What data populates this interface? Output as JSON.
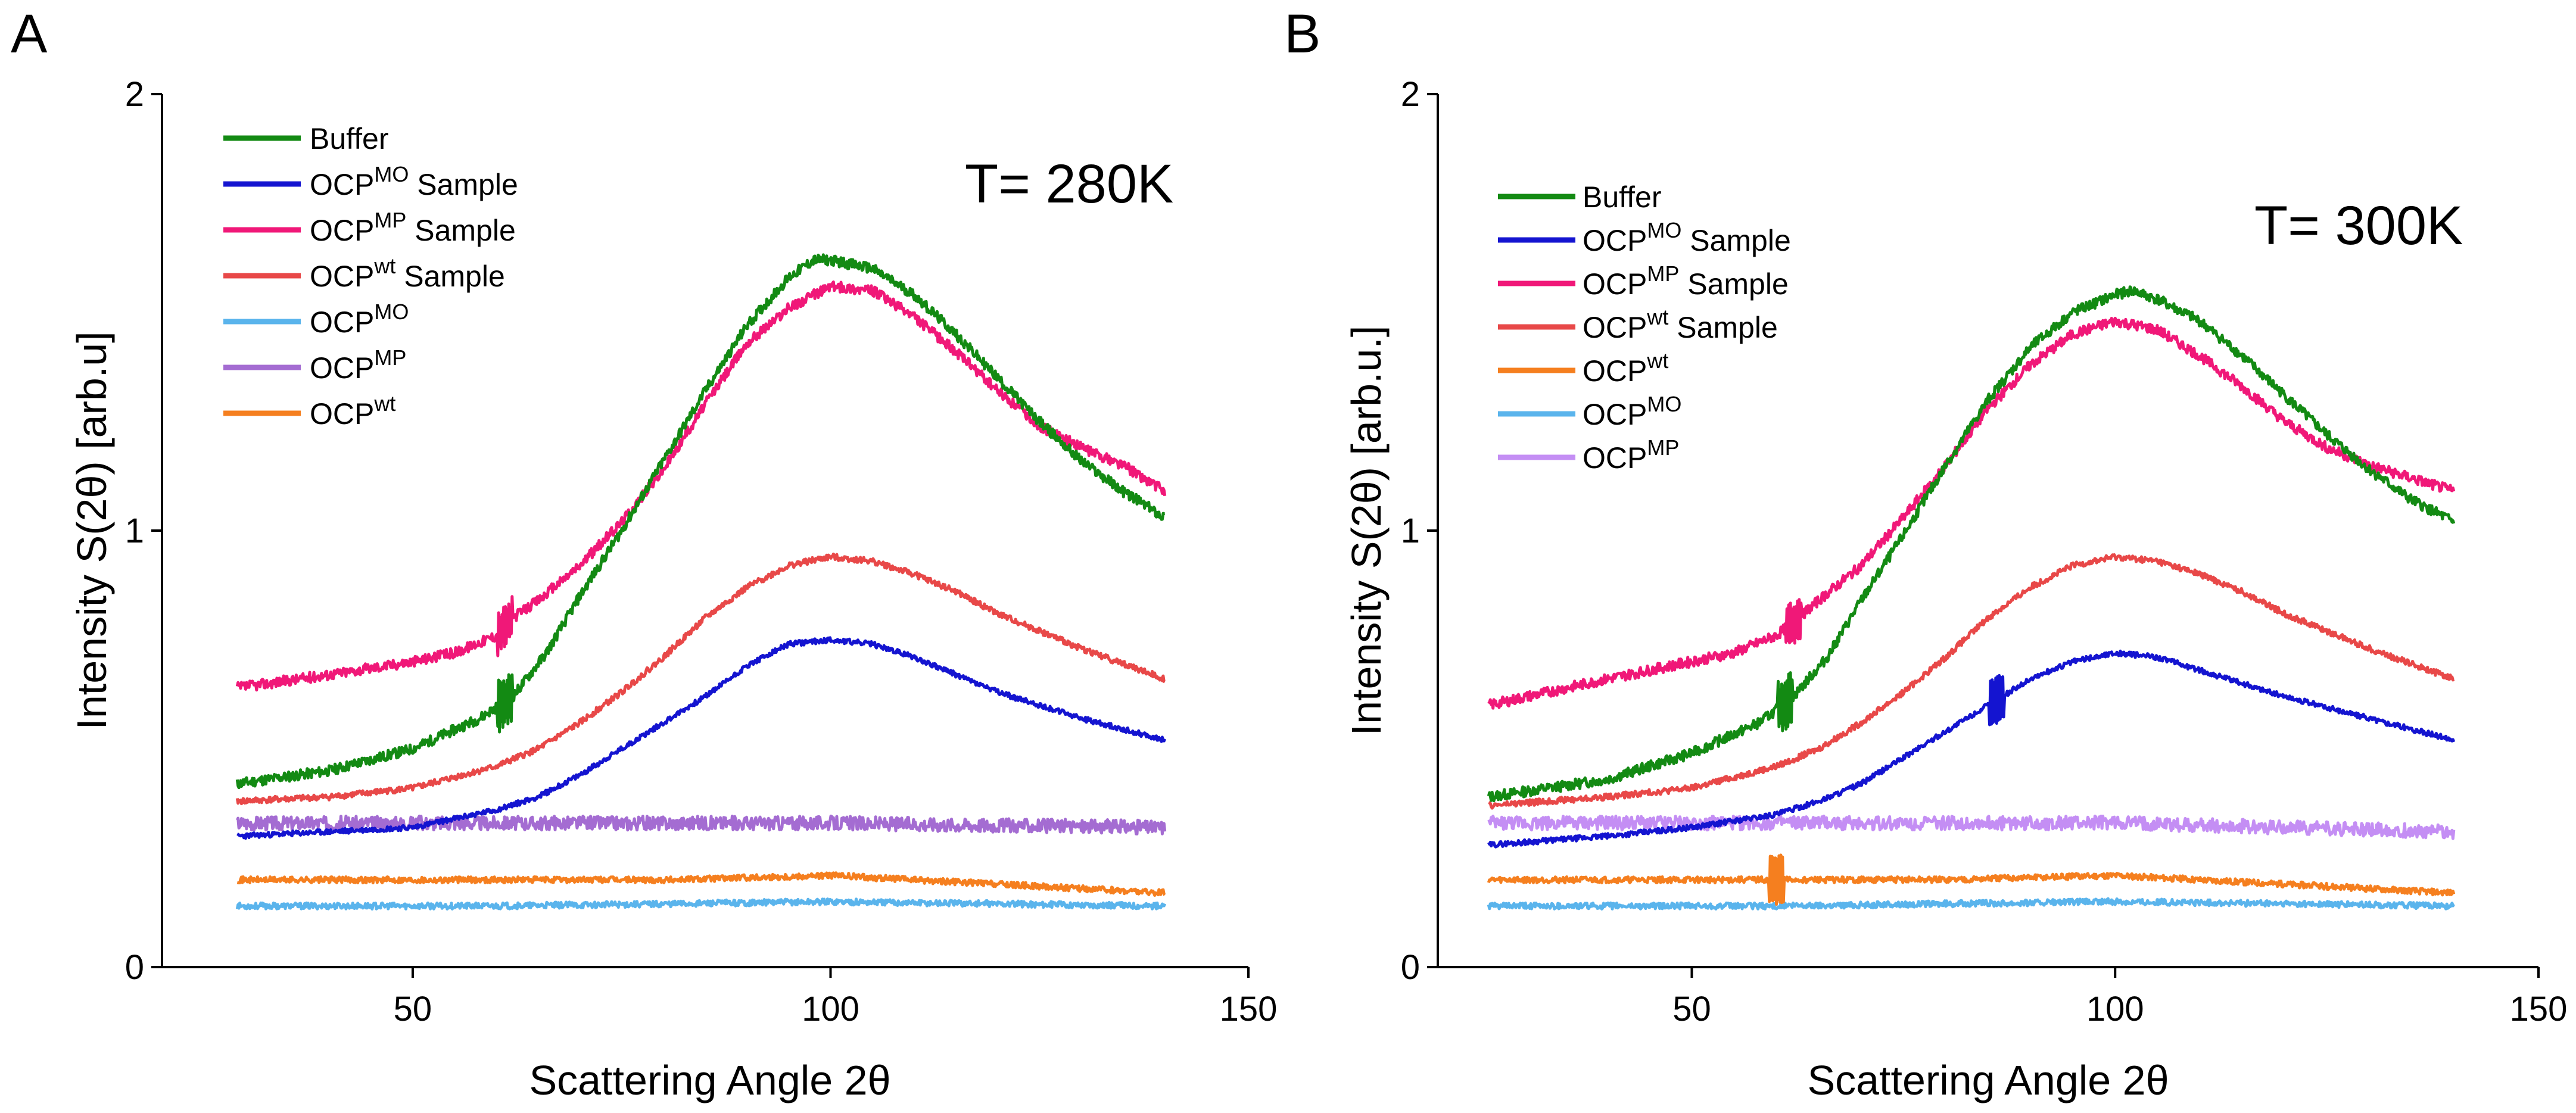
{
  "colors": {
    "buffer": "#138a13",
    "ocp_mo_sample": "#1414d0",
    "ocp_mp_sample": "#f01878",
    "ocp_wt_sample": "#e84848",
    "ocp_mo": "#5ab4ec",
    "ocp_mp_a": "#a46cd2",
    "ocp_mp_b": "#c48ef4",
    "ocp_wt": "#f57f1f",
    "axis": "#000000"
  },
  "chart_data": [
    {
      "panel": "A",
      "type": "line",
      "annotation": "T= 280K",
      "xlabel": "Scattering Angle 2θ",
      "ylabel": "Intensity S(2θ) [arb.u]",
      "xlim": [
        20,
        150
      ],
      "ylim": [
        0,
        2
      ],
      "xticks": [
        {
          "value": 50,
          "label": "50"
        },
        {
          "value": 100,
          "label": "100"
        },
        {
          "value": 150,
          "label": "150"
        }
      ],
      "yticks": [
        {
          "value": 0,
          "label": "0"
        },
        {
          "value": 1,
          "label": "1"
        },
        {
          "value": 2,
          "label": "2"
        }
      ],
      "legend": [
        {
          "base": "Buffer",
          "sup": "",
          "suffix": "",
          "color_key": "buffer"
        },
        {
          "base": "OCP",
          "sup": "MO",
          "suffix": "Sample",
          "color_key": "ocp_mo_sample"
        },
        {
          "base": "OCP",
          "sup": "MP",
          "suffix": "Sample",
          "color_key": "ocp_mp_sample"
        },
        {
          "base": "OCP",
          "sup": "wt",
          "suffix": "Sample",
          "color_key": "ocp_wt_sample"
        },
        {
          "base": "OCP",
          "sup": "MO",
          "suffix": "",
          "color_key": "ocp_mo"
        },
        {
          "base": "OCP",
          "sup": "MP",
          "suffix": "",
          "color_key": "ocp_mp_a"
        },
        {
          "base": "OCP",
          "sup": "wt",
          "suffix": "",
          "color_key": "ocp_wt"
        }
      ],
      "series": [
        {
          "name": "Buffer",
          "color_key": "buffer",
          "noise": 0.012,
          "seed": 11,
          "spike_at": 61,
          "spike_amp": 0.05,
          "x": [
            29,
            40,
            50,
            58,
            62,
            66,
            70,
            75,
            80,
            85,
            90,
            95,
            98,
            100,
            105,
            110,
            115,
            120,
            125,
            130,
            135,
            140
          ],
          "y": [
            0.42,
            0.45,
            0.5,
            0.57,
            0.62,
            0.72,
            0.85,
            1.0,
            1.16,
            1.32,
            1.47,
            1.58,
            1.62,
            1.62,
            1.6,
            1.54,
            1.45,
            1.35,
            1.25,
            1.16,
            1.09,
            1.03
          ]
        },
        {
          "name": "OCP MO Sample",
          "color_key": "ocp_mo_sample",
          "noise": 0.006,
          "seed": 23,
          "spike_at": 0,
          "spike_amp": 0,
          "x": [
            29,
            40,
            50,
            60,
            65,
            70,
            75,
            80,
            85,
            90,
            95,
            100,
            105,
            110,
            115,
            120,
            130,
            140
          ],
          "y": [
            0.3,
            0.31,
            0.32,
            0.36,
            0.39,
            0.44,
            0.5,
            0.56,
            0.62,
            0.69,
            0.74,
            0.75,
            0.74,
            0.71,
            0.67,
            0.63,
            0.57,
            0.52
          ]
        },
        {
          "name": "OCP MP Sample",
          "color_key": "ocp_mp_sample",
          "noise": 0.012,
          "seed": 37,
          "spike_at": 61,
          "spike_amp": 0.04,
          "x": [
            29,
            40,
            50,
            55,
            60,
            62,
            65,
            70,
            75,
            80,
            85,
            90,
            95,
            100,
            105,
            110,
            115,
            120,
            125,
            130,
            135,
            140
          ],
          "y": [
            0.64,
            0.67,
            0.7,
            0.72,
            0.76,
            0.8,
            0.84,
            0.92,
            1.02,
            1.14,
            1.29,
            1.43,
            1.51,
            1.56,
            1.55,
            1.49,
            1.41,
            1.32,
            1.24,
            1.19,
            1.15,
            1.09
          ]
        },
        {
          "name": "OCP wt Sample",
          "color_key": "ocp_wt_sample",
          "noise": 0.007,
          "seed": 41,
          "spike_at": 0,
          "spike_amp": 0,
          "x": [
            29,
            40,
            50,
            60,
            65,
            70,
            75,
            80,
            85,
            90,
            95,
            100,
            105,
            110,
            115,
            120,
            130,
            140
          ],
          "y": [
            0.38,
            0.39,
            0.41,
            0.46,
            0.5,
            0.56,
            0.63,
            0.71,
            0.8,
            0.87,
            0.92,
            0.94,
            0.93,
            0.9,
            0.86,
            0.81,
            0.73,
            0.66
          ]
        },
        {
          "name": "OCP MO",
          "color_key": "ocp_mo",
          "noise": 0.007,
          "seed": 53,
          "spike_at": 0,
          "spike_amp": 0,
          "x": [
            29,
            60,
            100,
            140
          ],
          "y": [
            0.14,
            0.14,
            0.15,
            0.14
          ]
        },
        {
          "name": "OCP MP",
          "color_key": "ocp_mp_a",
          "noise": 0.016,
          "seed": 67,
          "spike_at": 0,
          "spike_amp": 0,
          "x": [
            29,
            60,
            100,
            140
          ],
          "y": [
            0.33,
            0.33,
            0.33,
            0.32
          ]
        },
        {
          "name": "OCP wt",
          "color_key": "ocp_wt",
          "noise": 0.007,
          "seed": 71,
          "spike_at": 0,
          "spike_amp": 0,
          "x": [
            29,
            60,
            80,
            100,
            120,
            140
          ],
          "y": [
            0.2,
            0.2,
            0.2,
            0.21,
            0.19,
            0.17
          ]
        }
      ]
    },
    {
      "panel": "B",
      "type": "line",
      "annotation": "T= 300K",
      "xlabel": "Scattering Angle 2θ",
      "ylabel": "Intensity S(2θ) [arb.u.]",
      "xlim": [
        20,
        150
      ],
      "ylim": [
        0,
        2
      ],
      "xticks": [
        {
          "value": 50,
          "label": "50"
        },
        {
          "value": 100,
          "label": "100"
        },
        {
          "value": 150,
          "label": "150"
        }
      ],
      "yticks": [
        {
          "value": 0,
          "label": "0"
        },
        {
          "value": 1,
          "label": "1"
        },
        {
          "value": 2,
          "label": "2"
        }
      ],
      "legend": [
        {
          "base": "Buffer",
          "sup": "",
          "suffix": "",
          "color_key": "buffer"
        },
        {
          "base": "OCP",
          "sup": "MO",
          "suffix": "Sample",
          "color_key": "ocp_mo_sample"
        },
        {
          "base": "OCP",
          "sup": "MP",
          "suffix": "Sample",
          "color_key": "ocp_mp_sample"
        },
        {
          "base": "OCP",
          "sup": "wt",
          "suffix": "Sample",
          "color_key": "ocp_wt_sample"
        },
        {
          "base": "OCP",
          "sup": "wt",
          "suffix": "",
          "color_key": "ocp_wt"
        },
        {
          "base": "OCP",
          "sup": "MO",
          "suffix": "",
          "color_key": "ocp_mo"
        },
        {
          "base": "OCP",
          "sup": "MP",
          "suffix": "",
          "color_key": "ocp_mp_b"
        }
      ],
      "series": [
        {
          "name": "Buffer",
          "color_key": "buffer",
          "noise": 0.012,
          "seed": 13,
          "spike_at": 61,
          "spike_amp": 0.05,
          "x": [
            26,
            40,
            50,
            58,
            62,
            66,
            70,
            75,
            80,
            85,
            90,
            95,
            100,
            102,
            105,
            110,
            115,
            120,
            125,
            130,
            135,
            140
          ],
          "y": [
            0.39,
            0.43,
            0.49,
            0.56,
            0.62,
            0.71,
            0.84,
            0.99,
            1.15,
            1.3,
            1.42,
            1.5,
            1.54,
            1.55,
            1.53,
            1.48,
            1.4,
            1.31,
            1.22,
            1.14,
            1.07,
            1.02
          ]
        },
        {
          "name": "OCP MO Sample",
          "color_key": "ocp_mo_sample",
          "noise": 0.006,
          "seed": 29,
          "spike_at": 86,
          "spike_amp": 0.05,
          "x": [
            26,
            40,
            50,
            60,
            65,
            70,
            75,
            80,
            85,
            90,
            95,
            100,
            105,
            110,
            115,
            120,
            130,
            140
          ],
          "y": [
            0.28,
            0.3,
            0.32,
            0.35,
            0.38,
            0.42,
            0.48,
            0.54,
            0.6,
            0.66,
            0.7,
            0.72,
            0.71,
            0.68,
            0.65,
            0.62,
            0.57,
            0.52
          ]
        },
        {
          "name": "OCP MP Sample",
          "color_key": "ocp_mp_sample",
          "noise": 0.012,
          "seed": 43,
          "spike_at": 62,
          "spike_amp": 0.04,
          "x": [
            26,
            40,
            50,
            55,
            60,
            62,
            65,
            70,
            75,
            80,
            85,
            90,
            95,
            100,
            105,
            110,
            115,
            120,
            125,
            130,
            135,
            140
          ],
          "y": [
            0.6,
            0.66,
            0.7,
            0.72,
            0.76,
            0.79,
            0.84,
            0.92,
            1.03,
            1.15,
            1.28,
            1.38,
            1.45,
            1.48,
            1.46,
            1.4,
            1.33,
            1.25,
            1.19,
            1.15,
            1.12,
            1.09
          ]
        },
        {
          "name": "OCP wt Sample",
          "color_key": "ocp_wt_sample",
          "noise": 0.007,
          "seed": 47,
          "spike_at": 0,
          "spike_amp": 0,
          "x": [
            26,
            40,
            50,
            60,
            65,
            70,
            75,
            80,
            85,
            90,
            95,
            100,
            105,
            110,
            115,
            120,
            130,
            140
          ],
          "y": [
            0.37,
            0.39,
            0.41,
            0.46,
            0.5,
            0.56,
            0.63,
            0.71,
            0.8,
            0.87,
            0.92,
            0.94,
            0.93,
            0.9,
            0.86,
            0.81,
            0.73,
            0.66
          ]
        },
        {
          "name": "OCP wt",
          "color_key": "ocp_wt",
          "noise": 0.007,
          "seed": 59,
          "spike_at": 60,
          "spike_amp": -0.05,
          "x": [
            26,
            60,
            80,
            100,
            120,
            140
          ],
          "y": [
            0.2,
            0.2,
            0.2,
            0.21,
            0.19,
            0.17
          ]
        },
        {
          "name": "OCP MO",
          "color_key": "ocp_mo",
          "noise": 0.007,
          "seed": 61,
          "spike_at": 0,
          "spike_amp": 0,
          "x": [
            26,
            60,
            100,
            140
          ],
          "y": [
            0.14,
            0.14,
            0.15,
            0.14
          ]
        },
        {
          "name": "OCP MP",
          "color_key": "ocp_mp_b",
          "noise": 0.016,
          "seed": 73,
          "spike_at": 0,
          "spike_amp": 0,
          "x": [
            26,
            60,
            100,
            140
          ],
          "y": [
            0.33,
            0.33,
            0.33,
            0.31
          ]
        }
      ]
    }
  ]
}
